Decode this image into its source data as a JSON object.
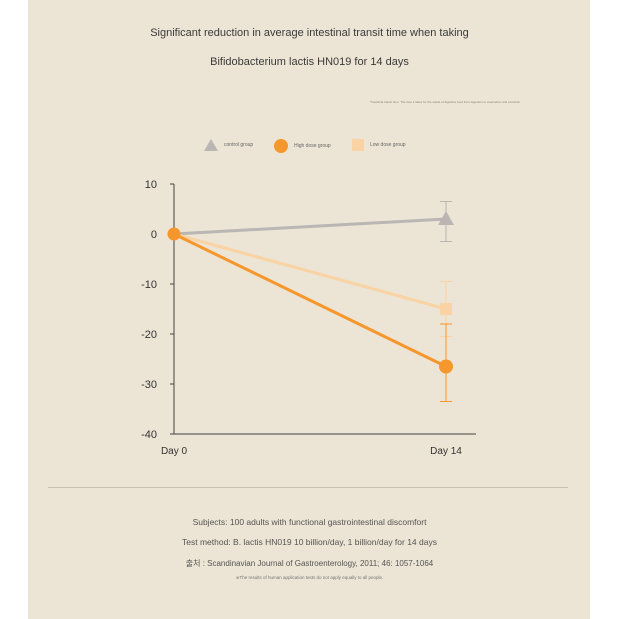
{
  "chart_data": {
    "type": "line",
    "title": "Significant reduction in average intestinal transit time when taking",
    "subtitle": "Bifidobacterium lactis HN019 for 14 days",
    "note": "*Intestinal transit time: The time it takes for the waste of digestive food from digestion to evacuation and excretion",
    "x": [
      "Day 0",
      "Day 14"
    ],
    "ylim": [
      -40,
      10
    ],
    "yticks": [
      10,
      0,
      -10,
      -20,
      -30,
      -40
    ],
    "legend_position": "top",
    "series": [
      {
        "name": "control group",
        "values": [
          0,
          3
        ],
        "err_low": [
          0,
          -1.5
        ],
        "err_high": [
          0,
          6.5
        ],
        "color": "#b9b6b4",
        "marker": "triangle"
      },
      {
        "name": "Low dose group",
        "values": [
          0,
          -15
        ],
        "err_low": [
          0,
          -20.5
        ],
        "err_high": [
          0,
          -9.5
        ],
        "color": "#f9d3a3",
        "marker": "square"
      },
      {
        "name": "High dose group",
        "values": [
          0,
          -26.5
        ],
        "err_low": [
          0,
          -33.5
        ],
        "err_high": [
          0,
          -18
        ],
        "color": "#f5972c",
        "marker": "circle"
      }
    ]
  },
  "footer": {
    "subjects": "Subjects: 100 adults with functional gastrointestinal discomfort",
    "method": "Test method: B. lactis HN019 10 billion/day, 1 billion/day for 14 days",
    "source": "출처 : Scandinavian Journal of Gastroenterology, 2011; 46: 1057-1064",
    "disclaimer": "※The results of human application tests do not apply equally to all people."
  }
}
